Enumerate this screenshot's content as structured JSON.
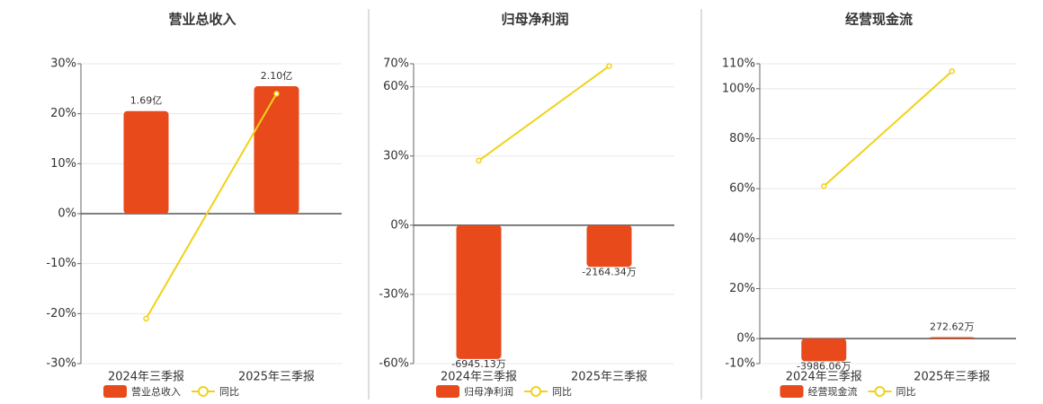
{
  "chart_data": [
    {
      "type": "combo",
      "title": "营业总收入",
      "categories": [
        "2024年三季报",
        "2025年三季报"
      ],
      "ylim": [
        -30,
        30
      ],
      "yticks": [
        {
          "value": -30,
          "label": "-30%"
        },
        {
          "value": -20,
          "label": "-20%"
        },
        {
          "value": -10,
          "label": "-10%"
        },
        {
          "value": 0,
          "label": "0%"
        },
        {
          "value": 10,
          "label": "10%"
        },
        {
          "value": 20,
          "label": "20%"
        },
        {
          "value": 30,
          "label": "30%"
        }
      ],
      "y2lim": [
        -2.47,
        2.47
      ],
      "series": [
        {
          "name": "营业总收入",
          "type": "bar",
          "axis": "y2",
          "color": "#e84a1b",
          "values": [
            1.69,
            2.1
          ],
          "value_labels": [
            "1.69亿",
            "2.10亿"
          ]
        },
        {
          "name": "同比",
          "type": "line",
          "color": "#f0d21a",
          "values": [
            -21,
            24
          ]
        }
      ]
    },
    {
      "type": "combo",
      "title": "归母净利润",
      "categories": [
        "2024年三季报",
        "2025年三季报"
      ],
      "ylim": [
        -60,
        70
      ],
      "yticks": [
        {
          "value": -60,
          "label": "-60%"
        },
        {
          "value": -30,
          "label": "-30%"
        },
        {
          "value": 0,
          "label": "0%"
        },
        {
          "value": 30,
          "label": "30%"
        },
        {
          "value": 60,
          "label": "60%"
        },
        {
          "value": 70,
          "label": "70%"
        }
      ],
      "y2lim": [
        -7185,
        8382
      ],
      "series": [
        {
          "name": "归母净利润",
          "type": "bar",
          "axis": "y2",
          "color": "#e84a1b",
          "values": [
            -6945.13,
            -2164.34
          ],
          "value_labels": [
            "-6945.13万",
            "-2164.34万"
          ]
        },
        {
          "name": "同比",
          "type": "line",
          "color": "#f0d21a",
          "values": [
            28,
            69
          ]
        }
      ]
    },
    {
      "type": "combo",
      "title": "经营现金流",
      "categories": [
        "2024年三季报",
        "2025年三季报"
      ],
      "ylim": [
        -10,
        110
      ],
      "yticks": [
        {
          "value": -10,
          "label": "-10%"
        },
        {
          "value": 0,
          "label": "0%"
        },
        {
          "value": 20,
          "label": "20%"
        },
        {
          "value": 40,
          "label": "40%"
        },
        {
          "value": 60,
          "label": "60%"
        },
        {
          "value": 80,
          "label": "80%"
        },
        {
          "value": 100,
          "label": "100%"
        },
        {
          "value": 110,
          "label": "110%"
        }
      ],
      "y2lim": [
        -4400,
        48400
      ],
      "series": [
        {
          "name": "经营现金流",
          "type": "bar",
          "axis": "y2",
          "color": "#e84a1b",
          "values": [
            -3986.06,
            272.62
          ],
          "value_labels": [
            "-3986.06万",
            "272.62万"
          ]
        },
        {
          "name": "同比",
          "type": "line",
          "color": "#f0d21a",
          "values": [
            61,
            107
          ]
        }
      ]
    }
  ]
}
